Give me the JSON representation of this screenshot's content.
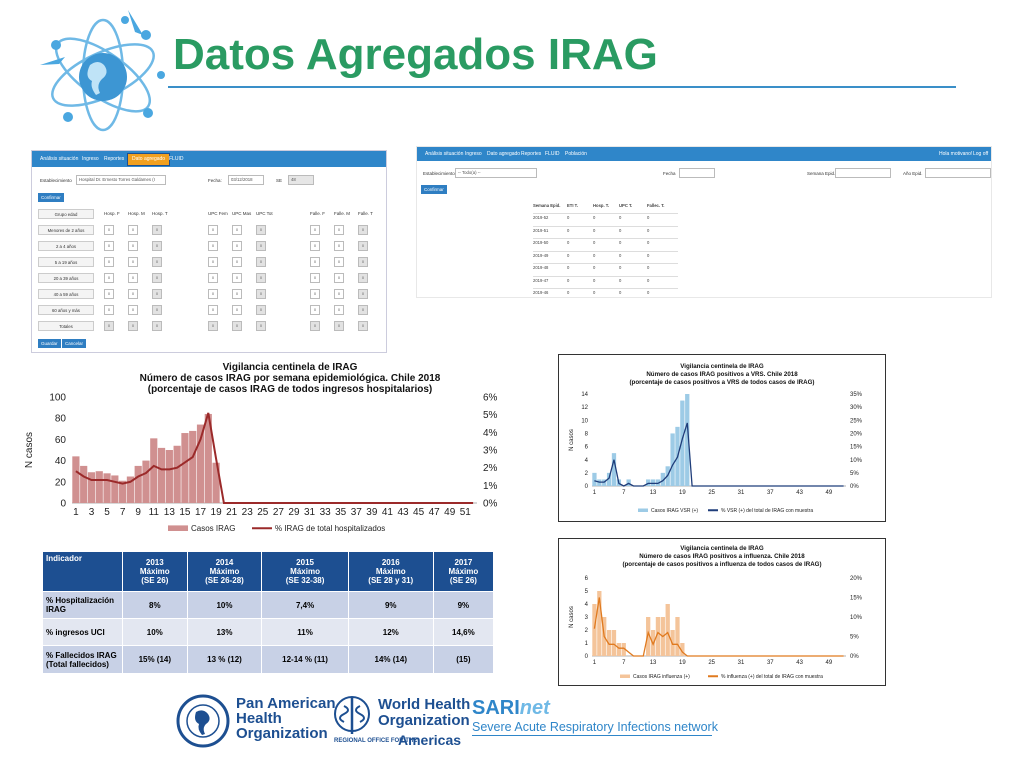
{
  "title": "Datos Agregados IRAG",
  "shot1": {
    "nav": [
      "Análisis situación",
      "Ingreso",
      "Reportes",
      "Dato agregado",
      "FLUID"
    ],
    "establecimiento_label": "Establecimiento",
    "establecimiento_value": "Hospital Dr. Ernesto Torres Galdames (I",
    "fecha_label": "Fecha:",
    "fecha_value": "03/12/2018",
    "se_label": "SE",
    "se_value": "48",
    "confirmar": "Confirmar",
    "grupo_edad": "Grupo edad",
    "groups": [
      "Menores de 2 años",
      "2 a 4 años",
      "5 a 19 años",
      "20 a 39 años",
      "40 a 59 años",
      "60 años y más",
      "Totales"
    ],
    "hosp_cols": [
      "Hosp. F",
      "Hosp. M",
      "Hosp. T"
    ],
    "upc_cols": [
      "UPC Fem",
      "UPC Mas",
      "UPC Tot"
    ],
    "fall_cols": [
      "Falle. F",
      "Falle. M",
      "Falle. T"
    ],
    "zero": "0",
    "guardar": "Guardar",
    "cancelar": "Cancelar"
  },
  "shot2": {
    "nav": [
      "Análisis situación",
      "Ingreso",
      "Dato agregado",
      "Reportes",
      "FLUID",
      "Población"
    ],
    "greet": "Hola motivano!",
    "logoff": "Log off",
    "establecimiento_label": "Establecimiento",
    "establecimiento_value": "-- Todo(a) --",
    "fecha_label": "Fecha",
    "semana_label": "Semana Epid.",
    "anio_label": "Año Epid.",
    "confirmar": "Confirmar",
    "cols": [
      "Semana Epid.",
      "ETI T.",
      "Hosp. T.",
      "UPC T.",
      "Fallec. T."
    ],
    "weeks": [
      "2019-52",
      "2019-51",
      "2019-50",
      "2019-49",
      "2019-48",
      "2019-47",
      "2019-46"
    ],
    "zero": "0"
  },
  "chart_main": {
    "type": "bar",
    "title_lines": [
      "Vigilancia centinela de IRAG",
      "Número de casos IRAG por semana epidemiológica. Chile 2018",
      "(porcentaje de casos IRAG de todos ingresos hospitalarios)"
    ],
    "ylabel": "N casos",
    "ylim": [
      0,
      100
    ],
    "yticks": [
      "0",
      "20",
      "40",
      "60",
      "80",
      "100"
    ],
    "y2ticks": [
      "0%",
      "1%",
      "2%",
      "3%",
      "4%",
      "5%",
      "6%"
    ],
    "xticks": [
      "1",
      "3",
      "5",
      "7",
      "9",
      "11",
      "13",
      "15",
      "17",
      "19",
      "21",
      "23",
      "25",
      "27",
      "29",
      "31",
      "33",
      "35",
      "37",
      "39",
      "41",
      "43",
      "45",
      "47",
      "49",
      "51"
    ],
    "legend": [
      "Casos IRAG",
      "% IRAG de total hospitalizados"
    ],
    "bar_color": "#d09090",
    "line_color": "#9b2a2a"
  },
  "chart_vrs": {
    "type": "bar",
    "title_lines": [
      "Vigilancia centinela de IRAG",
      "Número de casos IRAG positivos a VRS. Chile 2018",
      "(porcentaje de casos positivos a VRS de todos casos de IRAG)"
    ],
    "ylabel": "N casos",
    "ylim": [
      0,
      14
    ],
    "yticks": [
      "0",
      "2",
      "4",
      "6",
      "8",
      "10",
      "12",
      "14"
    ],
    "y2ticks": [
      "0%",
      "5%",
      "10%",
      "15%",
      "20%",
      "25%",
      "30%",
      "35%"
    ],
    "xticks": [
      "1",
      "7",
      "13",
      "19",
      "25",
      "31",
      "37",
      "43",
      "49"
    ],
    "legend": [
      "Casos IRAG VSR (+)",
      "% VSR (+) del total de IRAG con muestra"
    ],
    "bar_color": "#9dcbe6",
    "line_color": "#1f3d7a"
  },
  "chart_flu": {
    "type": "bar",
    "title_lines": [
      "Vigilancia centinela de IRAG",
      "Número de casos IRAG positivos a influenza. Chile 2018",
      "(porcentaje de casos positivos a influenza de todos casos de IRAG)"
    ],
    "ylabel": "N casos",
    "ylim": [
      0,
      6
    ],
    "yticks": [
      "0",
      "1",
      "2",
      "3",
      "4",
      "5",
      "6"
    ],
    "y2ticks": [
      "0%",
      "5%",
      "10%",
      "15%",
      "20%"
    ],
    "xticks": [
      "1",
      "7",
      "13",
      "19",
      "25",
      "31",
      "37",
      "43",
      "49"
    ],
    "legend": [
      "Casos IRAG influenza (+)",
      "% influenza (+) del total de IRAG con muestra"
    ],
    "bar_color": "#f4c49a",
    "line_color": "#e07a1f"
  },
  "chart_data": [
    {
      "type": "bar",
      "name": "main",
      "x": [
        1,
        2,
        3,
        4,
        5,
        6,
        7,
        8,
        9,
        10,
        11,
        12,
        13,
        14,
        15,
        16,
        17,
        18,
        19,
        20,
        21,
        22,
        23,
        24,
        25,
        26,
        27,
        28,
        29,
        30,
        31,
        32,
        33,
        34,
        35,
        36,
        37,
        38,
        39,
        40,
        41,
        42,
        43,
        44,
        45,
        46,
        47,
        48,
        49,
        50,
        51,
        52
      ],
      "values": [
        44,
        35,
        29,
        30,
        28,
        26,
        21,
        25,
        35,
        40,
        61,
        52,
        50,
        54,
        66,
        68,
        74,
        84,
        38,
        0,
        0,
        0,
        0,
        0,
        0,
        0,
        0,
        0,
        0,
        0,
        0,
        0,
        0,
        0,
        0,
        0,
        0,
        0,
        0,
        0,
        0,
        0,
        0,
        0,
        0,
        0,
        0,
        0,
        0,
        0,
        0,
        0
      ],
      "pct": [
        1.8,
        1.5,
        1.3,
        1.3,
        1.3,
        1.2,
        1.1,
        1.2,
        1.5,
        1.7,
        2.1,
        1.9,
        1.9,
        2.0,
        2.3,
        2.6,
        3.6,
        5.1,
        2.5,
        0,
        0,
        0,
        0,
        0,
        0,
        0,
        0,
        0,
        0,
        0,
        0,
        0,
        0,
        0,
        0,
        0,
        0,
        0,
        0,
        0,
        0,
        0,
        0,
        0,
        0,
        0,
        0,
        0,
        0,
        0,
        0,
        0
      ],
      "ylim": [
        0,
        100
      ],
      "y2lim": [
        0,
        6
      ]
    },
    {
      "type": "bar",
      "name": "vrs",
      "x": [
        1,
        2,
        3,
        4,
        5,
        6,
        7,
        8,
        9,
        10,
        11,
        12,
        13,
        14,
        15,
        16,
        17,
        18,
        19,
        20
      ],
      "values": [
        2,
        1,
        1,
        2,
        5,
        1,
        0,
        1,
        0,
        0,
        0,
        1,
        1,
        1,
        2,
        3,
        8,
        9,
        13,
        14
      ],
      "pct": [
        2,
        1.5,
        1.5,
        3,
        10,
        1,
        0,
        1,
        0,
        0,
        0,
        1,
        1,
        1,
        2,
        4,
        8,
        11,
        18,
        24
      ],
      "ylim": [
        0,
        14
      ],
      "y2lim": [
        0,
        35
      ]
    },
    {
      "type": "bar",
      "name": "flu",
      "x": [
        1,
        2,
        3,
        4,
        5,
        6,
        7,
        8,
        9,
        10,
        11,
        12,
        13,
        14,
        15,
        16,
        17,
        18,
        19
      ],
      "values": [
        4,
        5,
        3,
        2,
        2,
        1,
        1,
        0,
        0,
        0,
        0,
        3,
        2,
        3,
        3,
        4,
        2,
        3,
        1
      ],
      "pct": [
        7,
        15,
        5,
        3,
        3,
        2,
        2,
        1,
        0,
        0,
        0,
        6,
        3,
        6,
        5,
        6,
        3,
        3,
        1
      ],
      "ylim": [
        0,
        6
      ],
      "y2lim": [
        0,
        20
      ]
    }
  ],
  "indicadores": {
    "header": [
      "Indicador",
      "2013\nMáximo\n(SE 26)",
      "2014\nMáximo\n(SE 26-28)",
      "2015\nMáximo\n(SE 32-38)",
      "2016\nMáximo\n(SE 28 y 31)",
      "2017\nMáximo\n(SE 26)"
    ],
    "rows": [
      [
        "% Hospitalización IRAG",
        "8%",
        "10%",
        "7,4%",
        "9%",
        "9%"
      ],
      [
        "% ingresos UCI",
        "10%",
        "13%",
        "11%",
        "12%",
        "14,6%"
      ],
      [
        "%  Fallecidos IRAG\n(Total fallecidos)",
        "15% (14)",
        "13 % (12)",
        "12-14 % (11)",
        "14% (14)",
        "(15)"
      ]
    ]
  },
  "logos": {
    "paho": [
      "Pan American",
      "Health",
      "Organization"
    ],
    "who": [
      "World Health",
      "Organization"
    ],
    "who_sub": "REGIONAL OFFICE FOR THE",
    "who_americas": "Americas",
    "sari_a": "SARI",
    "sari_b": "net",
    "sari_sub": "Severe Acute Respiratory Infections network",
    "seal_text": "SALUD PARA TODOS"
  }
}
